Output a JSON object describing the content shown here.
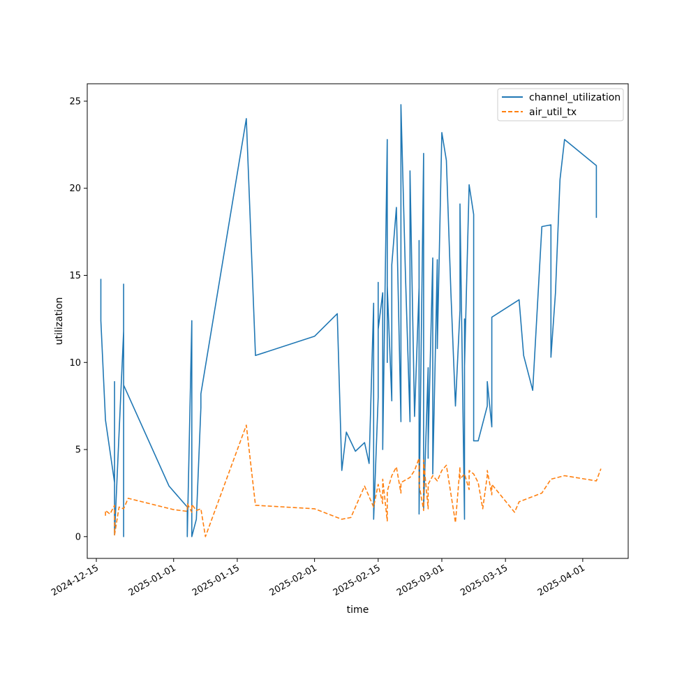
{
  "chart_data": {
    "type": "line",
    "xlabel": "time",
    "ylabel": "utilization",
    "x_axis_kind": "date",
    "xlim": [
      "2024-12-13",
      "2025-04-11"
    ],
    "ylim": [
      -1.25,
      26
    ],
    "x_ticks": [
      "2024-12-15",
      "2025-01-01",
      "2025-01-15",
      "2025-02-01",
      "2025-02-15",
      "2025-03-01",
      "2025-03-15",
      "2025-04-01"
    ],
    "y_ticks": [
      0,
      5,
      10,
      15,
      20,
      25
    ],
    "grid": false,
    "legend_position": "top-right",
    "series": [
      {
        "name": "channel_utilization",
        "color": "#1f77b4",
        "dash": "solid",
        "points": [
          [
            "2024-12-16",
            14.8
          ],
          [
            "2024-12-16",
            12.4
          ],
          [
            "2024-12-17",
            6.7
          ],
          [
            "2024-12-19",
            3.1
          ],
          [
            "2024-12-19",
            8.9
          ],
          [
            "2024-12-19",
            0.1
          ],
          [
            "2024-12-21",
            11.8
          ],
          [
            "2024-12-21",
            4.5
          ],
          [
            "2024-12-21",
            14.5
          ],
          [
            "2024-12-21",
            0.0
          ],
          [
            "2024-12-21",
            8.7
          ],
          [
            "2024-12-31",
            2.9
          ],
          [
            "2025-01-04",
            1.7
          ],
          [
            "2025-01-04",
            0.0
          ],
          [
            "2025-01-05",
            12.4
          ],
          [
            "2025-01-05",
            0.0
          ],
          [
            "2025-01-06",
            1.0
          ],
          [
            "2025-01-06",
            1.0
          ],
          [
            "2025-01-07",
            7.4
          ],
          [
            "2025-01-07",
            8.2
          ],
          [
            "2025-01-17",
            24.0
          ],
          [
            "2025-01-19",
            10.4
          ],
          [
            "2025-02-01",
            11.5
          ],
          [
            "2025-02-06",
            12.8
          ],
          [
            "2025-02-07",
            3.8
          ],
          [
            "2025-02-08",
            6.0
          ],
          [
            "2025-02-10",
            4.9
          ],
          [
            "2025-02-12",
            5.4
          ],
          [
            "2025-02-13",
            4.2
          ],
          [
            "2025-02-14",
            13.4
          ],
          [
            "2025-02-14",
            1.0
          ],
          [
            "2025-02-15",
            8.0
          ],
          [
            "2025-02-15",
            14.6
          ],
          [
            "2025-02-15",
            11.9
          ],
          [
            "2025-02-16",
            14.0
          ],
          [
            "2025-02-16",
            6.0
          ],
          [
            "2025-02-16",
            11.0
          ],
          [
            "2025-02-16",
            5.0
          ],
          [
            "2025-02-17",
            22.8
          ],
          [
            "2025-02-17",
            10.0
          ],
          [
            "2025-02-17",
            14.4
          ],
          [
            "2025-02-18",
            7.8
          ],
          [
            "2025-02-18",
            15.6
          ],
          [
            "2025-02-19",
            18.9
          ],
          [
            "2025-02-20",
            6.6
          ],
          [
            "2025-02-20",
            24.8
          ],
          [
            "2025-02-21",
            15.0
          ],
          [
            "2025-02-22",
            6.6
          ],
          [
            "2025-02-22",
            21.0
          ],
          [
            "2025-02-23",
            6.9
          ],
          [
            "2025-02-24",
            14.3
          ],
          [
            "2025-02-24",
            6.1
          ],
          [
            "2025-02-24",
            17.0
          ],
          [
            "2025-02-24",
            1.3
          ],
          [
            "2025-02-25",
            22.0
          ],
          [
            "2025-02-25",
            1.6
          ],
          [
            "2025-02-26",
            9.7
          ],
          [
            "2025-02-26",
            4.5
          ],
          [
            "2025-02-26",
            5.2
          ],
          [
            "2025-02-27",
            16.0
          ],
          [
            "2025-02-27",
            3.6
          ],
          [
            "2025-02-28",
            15.9
          ],
          [
            "2025-02-28",
            10.8
          ],
          [
            "2025-03-01",
            23.2
          ],
          [
            "2025-03-02",
            21.6
          ],
          [
            "2025-03-03",
            14.0
          ],
          [
            "2025-03-04",
            7.5
          ],
          [
            "2025-03-05",
            13.0
          ],
          [
            "2025-03-05",
            19.1
          ],
          [
            "2025-03-06",
            1.0
          ],
          [
            "2025-03-06",
            12.5
          ],
          [
            "2025-03-06",
            9.8
          ],
          [
            "2025-03-07",
            20.2
          ],
          [
            "2025-03-08",
            18.5
          ],
          [
            "2025-03-08",
            5.5
          ],
          [
            "2025-03-09",
            5.5
          ],
          [
            "2025-03-11",
            7.5
          ],
          [
            "2025-03-11",
            8.9
          ],
          [
            "2025-03-12",
            6.3
          ],
          [
            "2025-03-12",
            12.6
          ],
          [
            "2025-03-18",
            13.6
          ],
          [
            "2025-03-19",
            10.4
          ],
          [
            "2025-03-21",
            8.4
          ],
          [
            "2025-03-23",
            17.8
          ],
          [
            "2025-03-25",
            17.9
          ],
          [
            "2025-03-25",
            10.3
          ],
          [
            "2025-03-26",
            14.0
          ],
          [
            "2025-03-27",
            20.5
          ],
          [
            "2025-03-28",
            22.8
          ],
          [
            "2025-04-04",
            21.3
          ],
          [
            "2025-04-04",
            18.3
          ]
        ]
      },
      {
        "name": "air_util_tx",
        "color": "#ff7f0e",
        "dash": "dashed",
        "points": [
          [
            "2024-12-17",
            1.2
          ],
          [
            "2024-12-17",
            1.5
          ],
          [
            "2024-12-18",
            1.3
          ],
          [
            "2024-12-19",
            1.8
          ],
          [
            "2024-12-19",
            0.1
          ],
          [
            "2024-12-20",
            1.7
          ],
          [
            "2024-12-21",
            1.6
          ],
          [
            "2024-12-22",
            2.2
          ],
          [
            "2025-01-01",
            1.55
          ],
          [
            "2025-01-04",
            1.45
          ],
          [
            "2025-01-04",
            1.9
          ],
          [
            "2025-01-05",
            1.4
          ],
          [
            "2025-01-05",
            1.85
          ],
          [
            "2025-01-06",
            1.5
          ],
          [
            "2025-01-07",
            1.6
          ],
          [
            "2025-01-08",
            0.0
          ],
          [
            "2025-01-17",
            6.4
          ],
          [
            "2025-01-19",
            1.8
          ],
          [
            "2025-02-01",
            1.6
          ],
          [
            "2025-02-07",
            1.0
          ],
          [
            "2025-02-09",
            1.1
          ],
          [
            "2025-02-12",
            2.9
          ],
          [
            "2025-02-14",
            1.7
          ],
          [
            "2025-02-15",
            3.0
          ],
          [
            "2025-02-16",
            1.9
          ],
          [
            "2025-02-16",
            3.3
          ],
          [
            "2025-02-17",
            0.9
          ],
          [
            "2025-02-17",
            2.6
          ],
          [
            "2025-02-18",
            3.5
          ],
          [
            "2025-02-19",
            4.0
          ],
          [
            "2025-02-20",
            2.5
          ],
          [
            "2025-02-20",
            3.1
          ],
          [
            "2025-02-22",
            3.4
          ],
          [
            "2025-02-23",
            3.8
          ],
          [
            "2025-02-24",
            4.5
          ],
          [
            "2025-02-24",
            3.0
          ],
          [
            "2025-02-25",
            1.5
          ],
          [
            "2025-02-25",
            4.4
          ],
          [
            "2025-02-26",
            1.6
          ],
          [
            "2025-02-26",
            3.0
          ],
          [
            "2025-02-27",
            3.5
          ],
          [
            "2025-02-28",
            3.2
          ],
          [
            "2025-03-01",
            3.8
          ],
          [
            "2025-03-02",
            4.1
          ],
          [
            "2025-03-04",
            0.8
          ],
          [
            "2025-03-05",
            4.0
          ],
          [
            "2025-03-05",
            3.3
          ],
          [
            "2025-03-06",
            3.6
          ],
          [
            "2025-03-07",
            2.7
          ],
          [
            "2025-03-07",
            3.8
          ],
          [
            "2025-03-08",
            3.6
          ],
          [
            "2025-03-09",
            3.1
          ],
          [
            "2025-03-10",
            1.6
          ],
          [
            "2025-03-11",
            3.5
          ],
          [
            "2025-03-11",
            3.8
          ],
          [
            "2025-03-12",
            2.4
          ],
          [
            "2025-03-12",
            3.0
          ],
          [
            "2025-03-17",
            1.4
          ],
          [
            "2025-03-18",
            2.0
          ],
          [
            "2025-03-23",
            2.5
          ],
          [
            "2025-03-25",
            3.3
          ],
          [
            "2025-03-28",
            3.5
          ],
          [
            "2025-04-04",
            3.2
          ],
          [
            "2025-04-05",
            3.9
          ]
        ]
      }
    ]
  }
}
